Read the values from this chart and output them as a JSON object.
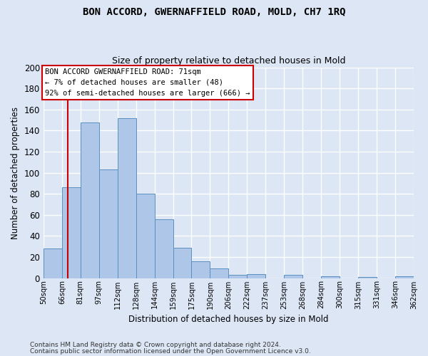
{
  "title1": "BON ACCORD, GWERNAFFIELD ROAD, MOLD, CH7 1RQ",
  "title2": "Size of property relative to detached houses in Mold",
  "xlabel": "Distribution of detached houses by size in Mold",
  "ylabel": "Number of detached properties",
  "bar_labels": [
    "50sqm",
    "66sqm",
    "81sqm",
    "97sqm",
    "112sqm",
    "128sqm",
    "144sqm",
    "159sqm",
    "175sqm",
    "190sqm",
    "206sqm",
    "222sqm",
    "237sqm",
    "253sqm",
    "268sqm",
    "284sqm",
    "300sqm",
    "315sqm",
    "331sqm",
    "346sqm",
    "362sqm"
  ],
  "bar_values": [
    28,
    86,
    148,
    103,
    152,
    80,
    56,
    29,
    16,
    9,
    3,
    4,
    0,
    3,
    0,
    2,
    0,
    1,
    0,
    2
  ],
  "bar_color": "#aec6e8",
  "bar_edge_color": "#5a8fc0",
  "ylim": [
    0,
    200
  ],
  "yticks": [
    0,
    20,
    40,
    60,
    80,
    100,
    120,
    140,
    160,
    180,
    200
  ],
  "property_line_label": "BON ACCORD GWERNAFFIELD ROAD: 71sqm",
  "annotation_line1": "← 7% of detached houses are smaller (48)",
  "annotation_line2": "92% of semi-detached houses are larger (666) →",
  "annotation_box_color": "#cc0000",
  "footer1": "Contains HM Land Registry data © Crown copyright and database right 2024.",
  "footer2": "Contains public sector information licensed under the Open Government Licence v3.0.",
  "background_color": "#dce6f5",
  "plot_bg_color": "#dce6f5",
  "grid_color": "#ffffff"
}
